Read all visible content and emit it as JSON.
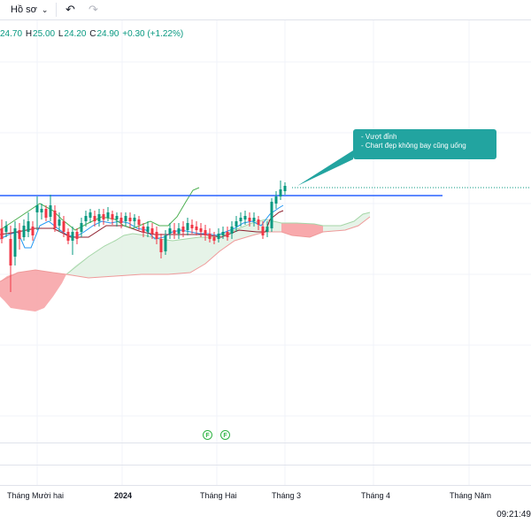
{
  "toolbar": {
    "profile_label": "Hồ sơ",
    "dropdown_icon": "chevron-down-icon",
    "undo_icon": "undo-icon",
    "redo_icon": "redo-icon"
  },
  "ohlc": {
    "o_value": "24.70",
    "h_label": "H",
    "h_value": "25.00",
    "l_label": "L",
    "l_value": "24.20",
    "c_label": "C",
    "c_value": "24.90",
    "change": "+0.30 (+1.22%)"
  },
  "annotation": {
    "line1": "- Vượt đỉnh",
    "line2": "- Chart đẹp không bay cũng uống"
  },
  "time_axis": [
    {
      "label": "Tháng Mười hai",
      "bold": false
    },
    {
      "label": "2024",
      "bold": true
    },
    {
      "label": "Tháng Hai",
      "bold": false
    },
    {
      "label": "Tháng 3",
      "bold": false
    },
    {
      "label": "Tháng 4",
      "bold": false
    },
    {
      "label": "Tháng Năm",
      "bold": false
    }
  ],
  "events": [
    "F",
    "F"
  ],
  "clock": "09:21:49",
  "colors": {
    "up": "#089981",
    "down": "#f23645",
    "accent": "#2962ff",
    "callout": "#22a4a0"
  }
}
